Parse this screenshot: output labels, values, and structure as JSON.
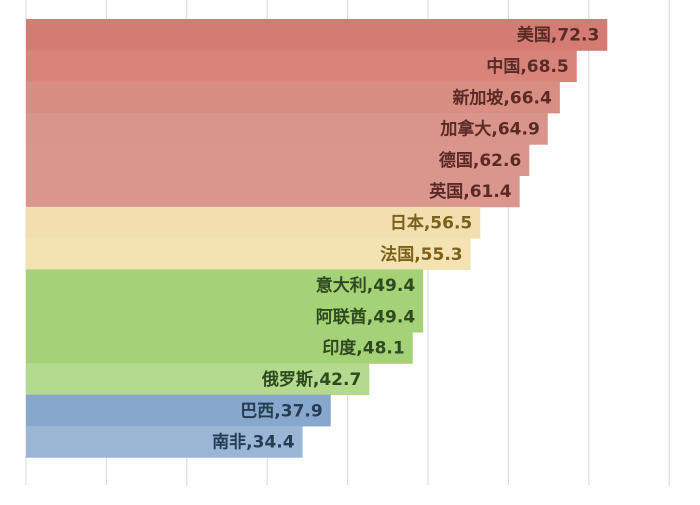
{
  "chart_data": {
    "type": "bar",
    "orientation": "horizontal",
    "categories": [
      "美国",
      "中国",
      "新加坡",
      "加拿大",
      "德国",
      "英国",
      "日本",
      "法国",
      "意大利",
      "阿联酋",
      "印度",
      "俄罗斯",
      "巴西",
      "南非"
    ],
    "values": [
      72.3,
      68.5,
      66.4,
      64.9,
      62.6,
      61.4,
      56.5,
      55.3,
      49.4,
      49.4,
      48.1,
      42.7,
      37.9,
      34.4
    ],
    "labels": [
      "美国,72.3",
      "中国,68.5",
      "新加坡,66.4",
      "加拿大,64.9",
      "德国,62.6",
      "英国,61.4",
      "日本,56.5",
      "法国,55.3",
      "意大利,49.4",
      "阿联酋,49.4",
      "印度,48.1",
      "俄罗斯,42.7",
      "巴西,37.9",
      "南非,34.4"
    ],
    "bar_colors": [
      "#d47b73",
      "#d8847b",
      "#d98e84",
      "#da958b",
      "#da958c",
      "#da958c",
      "#f1dfb0",
      "#f3e2b2",
      "#a6d277",
      "#a6d277",
      "#a6d277",
      "#b4da8e",
      "#87a8cc",
      "#9ab6d4"
    ],
    "label_colors": [
      "#5a2a25",
      "#5a2a25",
      "#5a2a25",
      "#5a2a25",
      "#5a2a25",
      "#5a2a25",
      "#7d6019",
      "#7d6019",
      "#2e4a20",
      "#2e4a20",
      "#2e4a20",
      "#2e4a20",
      "#263d56",
      "#263d56"
    ],
    "xlim": [
      0,
      80
    ],
    "grid": true
  }
}
